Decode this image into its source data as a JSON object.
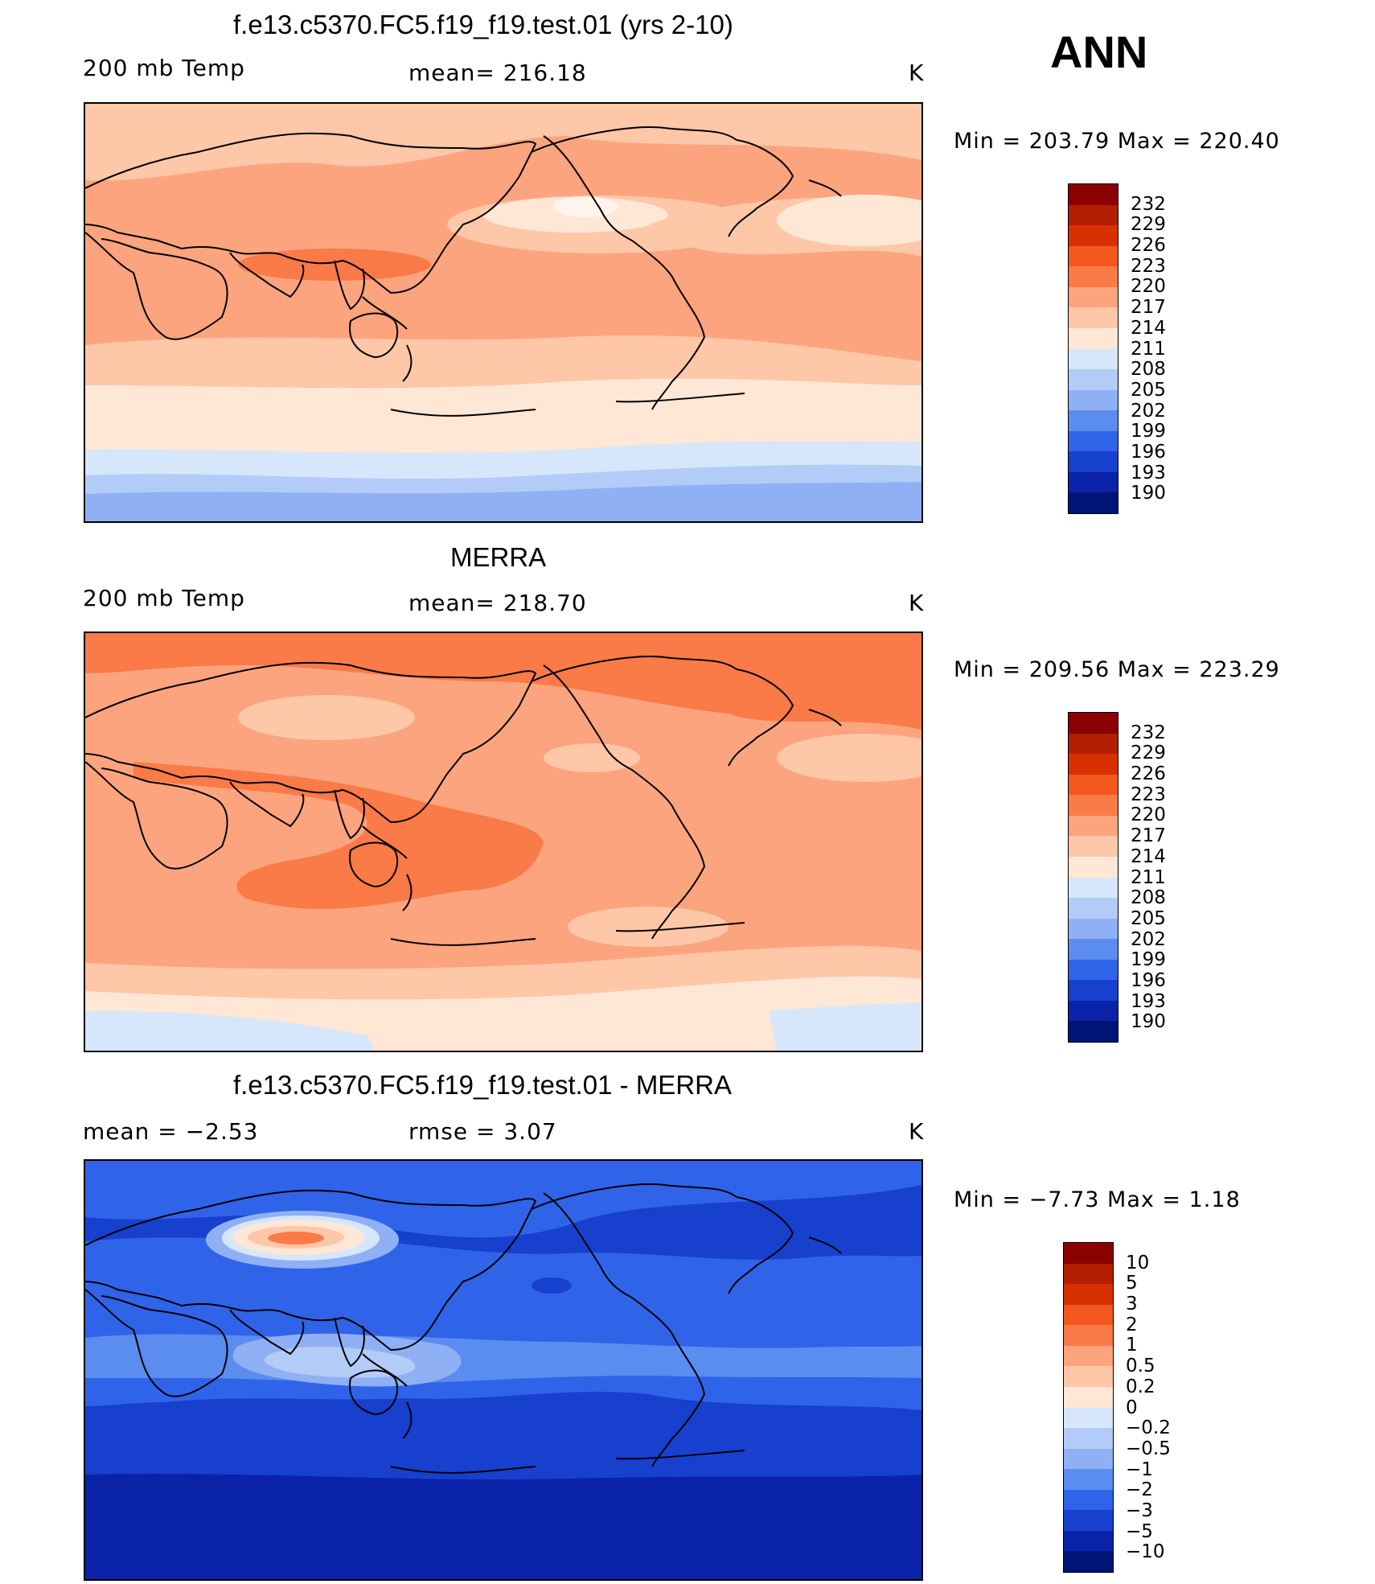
{
  "season": "ANN",
  "panels": [
    {
      "title": "f.e13.c5370.FC5.f19_f19.test.01 (yrs 2-10)",
      "left_label": "200 mb Temp",
      "center_label": "mean=  216.18",
      "units": "K",
      "minmax": "Min  =  203.79  Max  =  220.40",
      "field": "model"
    },
    {
      "title": "MERRA",
      "left_label": "200 mb Temp",
      "center_label": "mean=  218.70",
      "units": "K",
      "minmax": "Min  =  209.56  Max  =  223.29",
      "field": "obs"
    },
    {
      "title": "f.e13.c5370.FC5.f19_f19.test.01 - MERRA",
      "left_label": "mean  =    −2.53",
      "center_label": "rmse  =     3.07",
      "units": "K",
      "minmax": "Min  =    −7.73  Max  =     1.18",
      "field": "diff"
    }
  ],
  "colorbars": {
    "temperature": {
      "labels": [
        "232",
        "229",
        "226",
        "223",
        "220",
        "217",
        "214",
        "211",
        "208",
        "205",
        "202",
        "199",
        "196",
        "193",
        "190"
      ],
      "colors": [
        "#8b0000",
        "#b31e00",
        "#d93000",
        "#f2581e",
        "#fa7a48",
        "#fca47e",
        "#fdc7a8",
        "#fee7d5",
        "#d6e6fb",
        "#b3cbf7",
        "#8fb0f5",
        "#5b8cf0",
        "#2f64e8",
        "#1740cf",
        "#0a22a8",
        "#001477"
      ]
    },
    "difference": {
      "labels": [
        "10",
        "5",
        "3",
        "2",
        "1",
        "0.5",
        "0.2",
        "0",
        "−0.2",
        "−0.5",
        "−1",
        "−2",
        "−3",
        "−5",
        "−10"
      ],
      "colors": [
        "#8b0000",
        "#b31e00",
        "#d93000",
        "#f2581e",
        "#fa7a48",
        "#fca47e",
        "#fdc7a8",
        "#fee7d5",
        "#d6e6fb",
        "#b3cbf7",
        "#8fb0f5",
        "#5b8cf0",
        "#2f64e8",
        "#1740cf",
        "#0a22a8",
        "#001477"
      ]
    }
  }
}
